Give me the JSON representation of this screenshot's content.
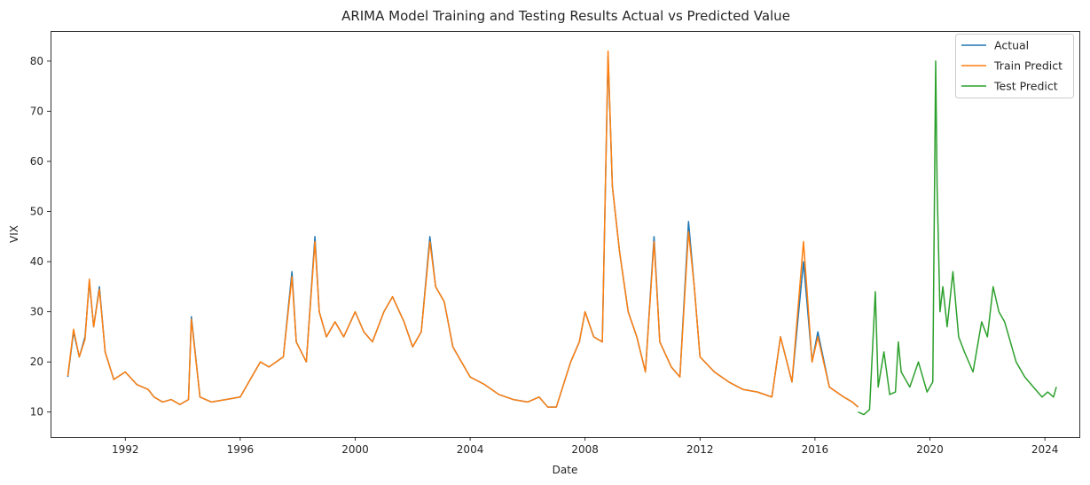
{
  "chart_data": {
    "type": "line",
    "title": "ARIMA Model Training and Testing Results Actual vs Predicted Value",
    "xlabel": "Date",
    "ylabel": "VIX",
    "xlim": [
      1989.4,
      2025.2
    ],
    "ylim": [
      5.0,
      86.0
    ],
    "x_ticks": [
      1992,
      1996,
      2000,
      2004,
      2008,
      2012,
      2016,
      2020,
      2024
    ],
    "x_tick_labels": [
      "1992",
      "1996",
      "2000",
      "2004",
      "2008",
      "2012",
      "2016",
      "2020",
      "2024"
    ],
    "y_ticks": [
      10,
      20,
      30,
      40,
      50,
      60,
      70,
      80
    ],
    "y_tick_labels": [
      "10",
      "20",
      "30",
      "40",
      "50",
      "60",
      "70",
      "80"
    ],
    "grid": false,
    "legend_position": "top-right",
    "series": [
      {
        "name": "Actual",
        "color": "#1f77b4",
        "x": [
          1990.0,
          1990.2,
          1990.4,
          1990.6,
          1990.75,
          1990.9,
          1991.1,
          1991.3,
          1991.6,
          1992.0,
          1992.4,
          1992.8,
          1993.0,
          1993.3,
          1993.6,
          1993.9,
          1994.2,
          1994.3,
          1994.6,
          1995.0,
          1995.5,
          1996.0,
          1996.4,
          1996.7,
          1997.0,
          1997.5,
          1997.8,
          1997.95,
          1998.3,
          1998.6,
          1998.75,
          1999.0,
          1999.3,
          1999.6,
          2000.0,
          2000.3,
          2000.6,
          2001.0,
          2001.3,
          2001.7,
          2002.0,
          2002.3,
          2002.6,
          2002.8,
          2003.1,
          2003.4,
          2003.7,
          2004.0,
          2004.5,
          2005.0,
          2005.5,
          2006.0,
          2006.4,
          2006.7,
          2007.0,
          2007.5,
          2007.8,
          2008.0,
          2008.3,
          2008.6,
          2008.8,
          2008.95,
          2009.2,
          2009.5,
          2009.8,
          2010.1,
          2010.4,
          2010.6,
          2011.0,
          2011.3,
          2011.6,
          2011.8,
          2012.0,
          2012.5,
          2013.0,
          2013.5,
          2014.0,
          2014.5,
          2014.8,
          2015.2,
          2015.6,
          2015.9,
          2016.1,
          2016.5,
          2017.0,
          2017.3,
          2017.5
        ],
        "y": [
          17.0,
          26.0,
          21.0,
          25.0,
          36.0,
          27.0,
          35.0,
          22.0,
          16.5,
          18.0,
          15.5,
          14.5,
          13.0,
          12.0,
          12.5,
          11.5,
          12.5,
          29.0,
          13.0,
          12.0,
          12.5,
          13.0,
          17.0,
          20.0,
          19.0,
          21.0,
          38.0,
          24.0,
          20.0,
          45.0,
          30.0,
          25.0,
          28.0,
          25.0,
          30.0,
          26.0,
          24.0,
          30.0,
          33.0,
          28.0,
          23.0,
          26.0,
          45.0,
          35.0,
          32.0,
          23.0,
          20.0,
          17.0,
          15.5,
          13.5,
          12.5,
          12.0,
          13.0,
          11.0,
          11.0,
          20.0,
          24.0,
          30.0,
          25.0,
          24.0,
          81.0,
          55.0,
          42.0,
          30.0,
          25.0,
          18.0,
          45.0,
          24.0,
          19.0,
          17.0,
          48.0,
          35.0,
          21.0,
          18.0,
          16.0,
          14.5,
          14.0,
          13.0,
          25.0,
          16.0,
          40.0,
          20.0,
          26.0,
          15.0,
          13.0,
          12.0,
          11.0
        ]
      },
      {
        "name": "Train Predict",
        "color": "#ff7f0e",
        "x": [
          1990.0,
          1990.2,
          1990.4,
          1990.6,
          1990.75,
          1990.9,
          1991.1,
          1991.3,
          1991.6,
          1992.0,
          1992.4,
          1992.8,
          1993.0,
          1993.3,
          1993.6,
          1993.9,
          1994.2,
          1994.3,
          1994.6,
          1995.0,
          1995.5,
          1996.0,
          1996.4,
          1996.7,
          1997.0,
          1997.5,
          1997.8,
          1997.95,
          1998.3,
          1998.6,
          1998.75,
          1999.0,
          1999.3,
          1999.6,
          2000.0,
          2000.3,
          2000.6,
          2001.0,
          2001.3,
          2001.7,
          2002.0,
          2002.3,
          2002.6,
          2002.8,
          2003.1,
          2003.4,
          2003.7,
          2004.0,
          2004.5,
          2005.0,
          2005.5,
          2006.0,
          2006.4,
          2006.7,
          2007.0,
          2007.5,
          2007.8,
          2008.0,
          2008.3,
          2008.6,
          2008.8,
          2008.95,
          2009.2,
          2009.5,
          2009.8,
          2010.1,
          2010.4,
          2010.6,
          2011.0,
          2011.3,
          2011.6,
          2011.8,
          2012.0,
          2012.5,
          2013.0,
          2013.5,
          2014.0,
          2014.5,
          2014.8,
          2015.2,
          2015.6,
          2015.9,
          2016.1,
          2016.5,
          2017.0,
          2017.3,
          2017.5
        ],
        "y": [
          17.2,
          26.5,
          21.0,
          24.5,
          36.5,
          27.0,
          34.5,
          22.0,
          16.5,
          18.0,
          15.5,
          14.5,
          13.0,
          12.0,
          12.5,
          11.5,
          12.5,
          28.5,
          13.0,
          12.0,
          12.5,
          13.0,
          17.0,
          20.0,
          19.0,
          21.0,
          37.0,
          24.0,
          20.0,
          44.0,
          30.0,
          25.0,
          28.0,
          25.0,
          30.0,
          26.0,
          24.0,
          30.0,
          33.0,
          28.0,
          23.0,
          26.0,
          44.0,
          35.0,
          32.0,
          23.0,
          20.0,
          17.0,
          15.5,
          13.5,
          12.5,
          12.0,
          13.0,
          11.0,
          11.0,
          20.0,
          24.0,
          30.0,
          25.0,
          24.0,
          82.0,
          55.0,
          42.0,
          30.0,
          25.0,
          18.0,
          44.0,
          24.0,
          19.0,
          17.0,
          46.0,
          35.0,
          21.0,
          18.0,
          16.0,
          14.5,
          14.0,
          13.0,
          25.0,
          16.0,
          44.0,
          20.0,
          25.0,
          15.0,
          13.0,
          12.0,
          11.0
        ]
      },
      {
        "name": "Test Predict",
        "color": "#2ca02c",
        "x": [
          2017.5,
          2017.7,
          2017.9,
          2018.1,
          2018.2,
          2018.4,
          2018.6,
          2018.8,
          2018.9,
          2019.0,
          2019.3,
          2019.6,
          2019.9,
          2020.1,
          2020.2,
          2020.25,
          2020.35,
          2020.45,
          2020.6,
          2020.8,
          2021.0,
          2021.2,
          2021.5,
          2021.8,
          2022.0,
          2022.2,
          2022.4,
          2022.6,
          2022.8,
          2023.0,
          2023.3,
          2023.6,
          2023.9,
          2024.1,
          2024.3,
          2024.4
        ],
        "y": [
          10.0,
          9.5,
          10.5,
          34.0,
          15.0,
          22.0,
          13.5,
          14.0,
          24.0,
          18.0,
          15.0,
          20.0,
          14.0,
          16.0,
          80.0,
          55.0,
          30.0,
          35.0,
          27.0,
          38.0,
          25.0,
          22.0,
          18.0,
          28.0,
          25.0,
          35.0,
          30.0,
          28.0,
          24.0,
          20.0,
          17.0,
          15.0,
          13.0,
          14.0,
          13.0,
          15.0
        ]
      }
    ]
  }
}
